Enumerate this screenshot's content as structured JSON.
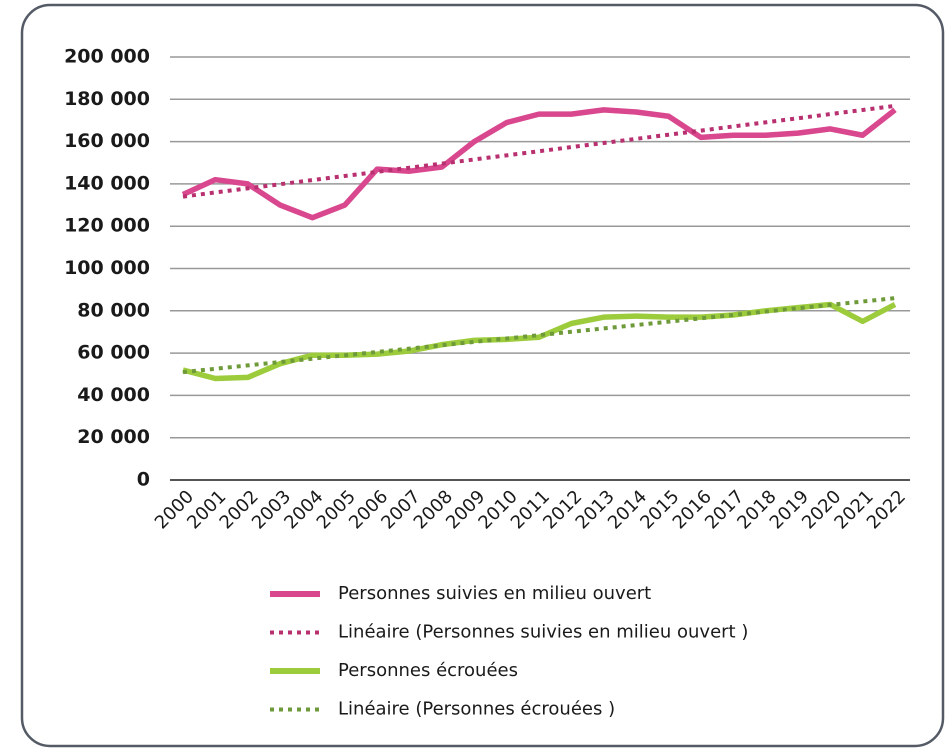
{
  "chart_data": {
    "type": "line",
    "x": [
      "2000",
      "2001",
      "2002",
      "2003",
      "2004",
      "2005",
      "2006",
      "2007",
      "2008",
      "2009",
      "2010",
      "2011",
      "2012",
      "2013",
      "2014",
      "2015",
      "2016",
      "2017",
      "2018",
      "2019",
      "2020",
      "2021",
      "2022"
    ],
    "series": [
      {
        "name": "Personnes suivies en milieu ouvert",
        "color": "#d9478f",
        "style": "solid",
        "values": [
          135000,
          142000,
          140000,
          130000,
          124000,
          130000,
          147000,
          146000,
          148000,
          160000,
          169000,
          173000,
          173000,
          175000,
          174000,
          172000,
          162000,
          163000,
          163000,
          164000,
          166000,
          163000,
          175000
        ]
      },
      {
        "name": "Linéaire (Personnes suivies en milieu ouvert )",
        "color": "#b8306f",
        "style": "dotted",
        "values": [
          134000,
          135950,
          137900,
          139850,
          141800,
          143750,
          145700,
          147650,
          149600,
          151550,
          153500,
          155450,
          157400,
          159350,
          161300,
          163250,
          165200,
          167150,
          169100,
          171050,
          173000,
          174950,
          176900
        ]
      },
      {
        "name": "Personnes écrouées",
        "color": "#9ccc3c",
        "style": "solid",
        "values": [
          52000,
          48000,
          48500,
          55000,
          59000,
          59000,
          59500,
          61000,
          64000,
          66000,
          66500,
          67500,
          74000,
          77000,
          77500,
          77000,
          77000,
          78000,
          80000,
          81500,
          83000,
          75000,
          83000
        ]
      },
      {
        "name": "Linéaire (Personnes écrouées )",
        "color": "#6e9a3a",
        "style": "dotted",
        "values": [
          51000,
          52590,
          54180,
          55770,
          57360,
          58950,
          60540,
          62130,
          63720,
          65310,
          66900,
          68490,
          70080,
          71670,
          73260,
          74850,
          76440,
          78030,
          79620,
          81210,
          82800,
          84390,
          85980
        ]
      }
    ],
    "ylim": [
      0,
      200000
    ],
    "yticks": [
      0,
      {
        "value": 20000,
        "label": "20 000"
      },
      {
        "value": 40000,
        "label": "40 000"
      },
      {
        "value": 60000,
        "label": "60 000"
      },
      {
        "value": 80000,
        "label": "80 000"
      },
      {
        "value": 100000,
        "label": "100 000"
      },
      {
        "value": 120000,
        "label": "120 000"
      },
      {
        "value": 140000,
        "label": "140 000"
      },
      {
        "value": 160000,
        "label": "160 000"
      },
      {
        "value": 180000,
        "label": "180 000"
      },
      {
        "value": 200000,
        "label": "200 000"
      }
    ],
    "grid": true,
    "legend": "bottom"
  }
}
